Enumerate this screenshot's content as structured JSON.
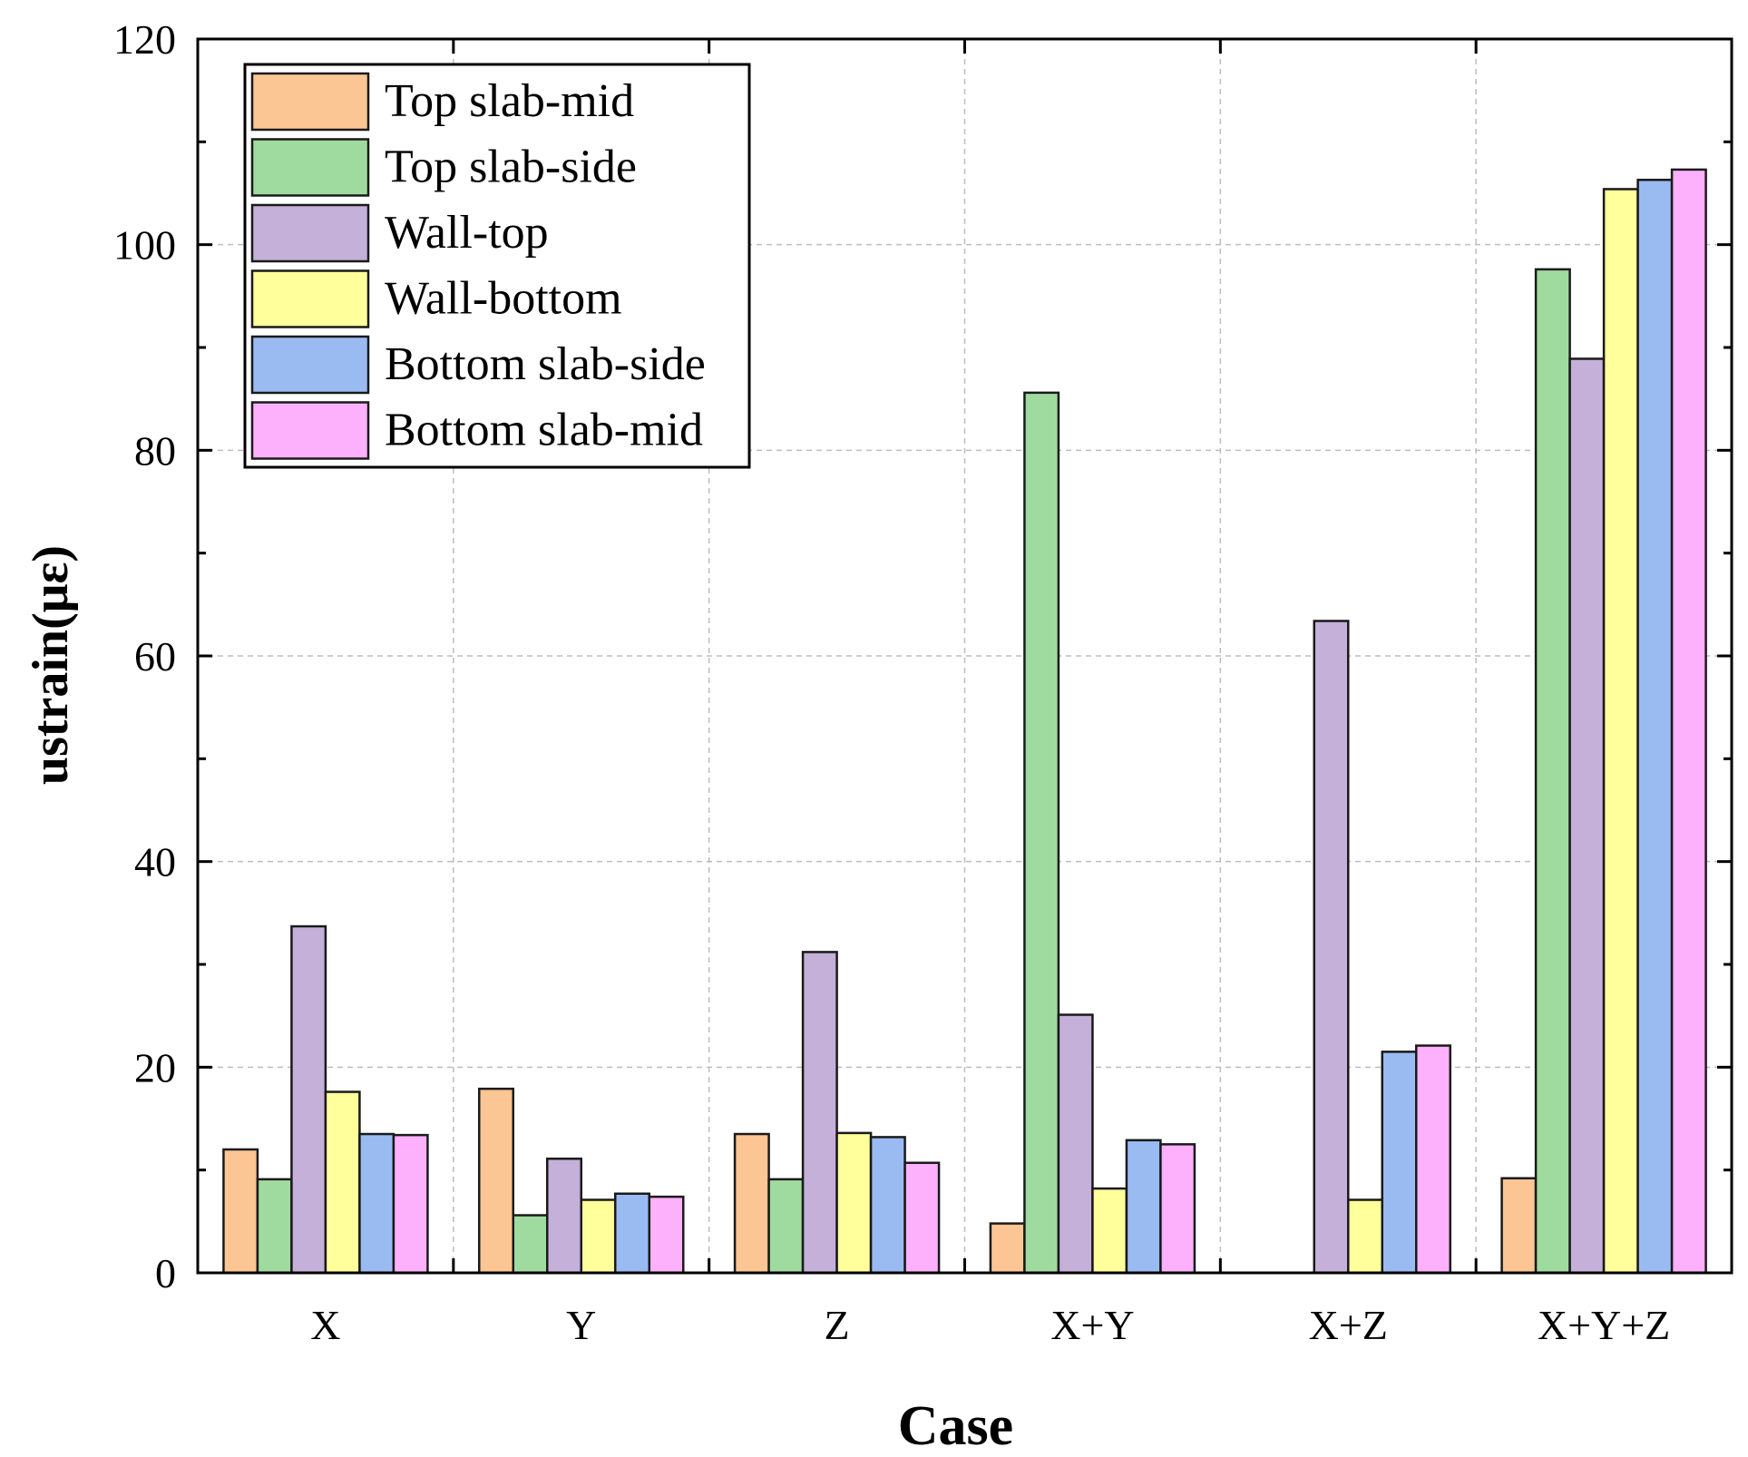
{
  "chart_data": {
    "type": "bar",
    "title": "",
    "xlabel": "Case",
    "ylabel": "ustrain(με)",
    "categories": [
      "X",
      "Y",
      "Z",
      "X+Y",
      "X+Z",
      "X+Y+Z"
    ],
    "ylim": [
      0,
      120
    ],
    "yticks": [
      0,
      20,
      40,
      60,
      80,
      100,
      120
    ],
    "grid": true,
    "legend_position": "top-left",
    "series": [
      {
        "name": "Top slab-mid",
        "color": "#fcc594",
        "values": [
          12.0,
          17.9,
          13.5,
          4.8,
          0,
          9.2
        ]
      },
      {
        "name": "Top slab-side",
        "color": "#9fdb9f",
        "values": [
          9.1,
          5.6,
          9.1,
          85.6,
          0,
          97.6
        ]
      },
      {
        "name": "Wall-top",
        "color": "#c4b0d9",
        "values": [
          33.7,
          11.1,
          31.2,
          25.1,
          63.4,
          88.9
        ]
      },
      {
        "name": "Wall-bottom",
        "color": "#ffff9c",
        "values": [
          17.6,
          7.1,
          13.6,
          8.2,
          7.1,
          105.4
        ]
      },
      {
        "name": "Bottom slab-side",
        "color": "#99bbf2",
        "values": [
          13.5,
          7.7,
          13.2,
          12.9,
          21.5,
          106.3
        ]
      },
      {
        "name": "Bottom slab-mid",
        "color": "#fdb0fb",
        "values": [
          13.4,
          7.4,
          10.7,
          12.5,
          22.1,
          107.3
        ]
      }
    ]
  }
}
